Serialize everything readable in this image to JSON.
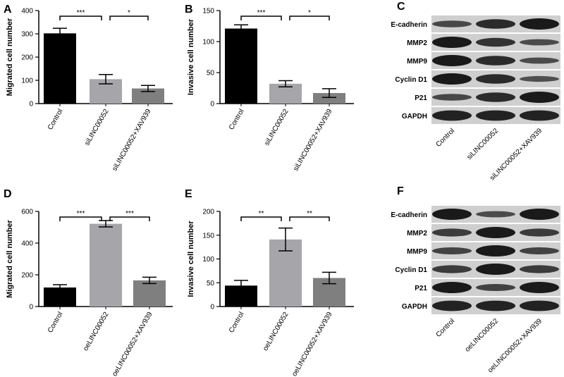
{
  "chart_data": [
    {
      "type": "bar",
      "panel": "A",
      "y_label": "Migrated cell number",
      "categories": [
        "Control",
        "siLINC00052",
        "siLINC00052+XAV939"
      ],
      "values": [
        302,
        105,
        65
      ],
      "errors": [
        22,
        20,
        13
      ],
      "colors": [
        "#000000",
        "#a6a6aa",
        "#7f7f7f"
      ],
      "ylim": [
        0,
        400
      ],
      "yticks": [
        0,
        100,
        200,
        300,
        400
      ],
      "annotations": [
        {
          "label": "***",
          "between": [
            0,
            1
          ]
        },
        {
          "label": "*",
          "between": [
            1,
            2
          ]
        }
      ]
    },
    {
      "type": "bar",
      "panel": "B",
      "y_label": "Invasive cell number",
      "categories": [
        "Control",
        "siLINC00052",
        "siLINC00052+XAV939"
      ],
      "values": [
        121,
        32,
        17
      ],
      "errors": [
        6,
        5,
        7
      ],
      "colors": [
        "#000000",
        "#a6a6aa",
        "#7f7f7f"
      ],
      "ylim": [
        0,
        150
      ],
      "yticks": [
        0,
        50,
        100,
        150
      ],
      "annotations": [
        {
          "label": "***",
          "between": [
            0,
            1
          ]
        },
        {
          "label": "*",
          "between": [
            1,
            2
          ]
        }
      ]
    },
    {
      "type": "bar",
      "panel": "D",
      "y_label": "Migrated cell number",
      "categories": [
        "Control",
        "oeLINC00052",
        "oeLINC00052+XAV939"
      ],
      "values": [
        120,
        522,
        165
      ],
      "errors": [
        18,
        20,
        20
      ],
      "colors": [
        "#000000",
        "#a6a6aa",
        "#7f7f7f"
      ],
      "ylim": [
        0,
        600
      ],
      "yticks": [
        0,
        200,
        400,
        600
      ],
      "annotations": [
        {
          "label": "***",
          "between": [
            0,
            1
          ]
        },
        {
          "label": "***",
          "between": [
            1,
            2
          ]
        }
      ]
    },
    {
      "type": "bar",
      "panel": "E",
      "y_label": "Invasive cell number",
      "categories": [
        "Control",
        "oeLINC00052",
        "oeLINC00052+XAV939"
      ],
      "values": [
        44,
        141,
        60
      ],
      "errors": [
        11,
        24,
        12
      ],
      "colors": [
        "#000000",
        "#a6a6aa",
        "#7f7f7f"
      ],
      "ylim": [
        0,
        200
      ],
      "yticks": [
        0,
        50,
        100,
        150,
        200
      ],
      "annotations": [
        {
          "label": "**",
          "between": [
            0,
            1
          ]
        },
        {
          "label": "**",
          "between": [
            1,
            2
          ]
        }
      ]
    }
  ],
  "blots": [
    {
      "panel": "C",
      "rows": [
        "E-cadherin",
        "MMP2",
        "MMP9",
        "Cyclin D1",
        "P21",
        "GAPDH"
      ],
      "lanes": [
        "Control",
        "siLINC00052",
        "siLINC00052+XAV939"
      ]
    },
    {
      "panel": "F",
      "rows": [
        "E-cadherin",
        "MMP2",
        "MMP9",
        "Cyclin D1",
        "P21",
        "GAPDH"
      ],
      "lanes": [
        "Control",
        "oeLINC00052",
        "oeLINC00052+XAV939"
      ]
    }
  ]
}
